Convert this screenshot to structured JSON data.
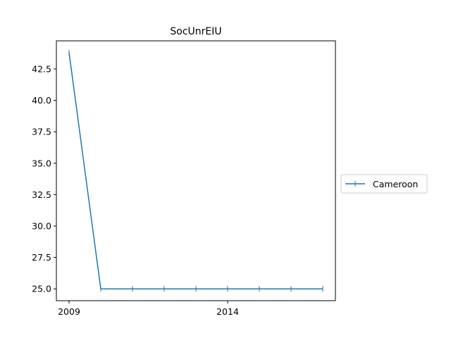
{
  "chart_data": {
    "type": "line",
    "title": "SocUnrEIU",
    "xlabel": "",
    "ylabel": "",
    "x": [
      2009,
      2010,
      2011,
      2012,
      2013,
      2014,
      2015,
      2016,
      2017
    ],
    "series": [
      {
        "name": "Cameroon",
        "values": [
          43.8,
          25.0,
          25.0,
          25.0,
          25.0,
          25.0,
          25.0,
          25.0,
          25.0
        ],
        "color": "#1f77b4"
      }
    ],
    "xticks": [
      2009,
      2014
    ],
    "xtick_labels": [
      "2009",
      "2014"
    ],
    "yticks": [
      25.0,
      27.5,
      30.0,
      32.5,
      35.0,
      37.5,
      40.0,
      42.5
    ],
    "ytick_labels": [
      "25.0",
      "27.5",
      "30.0",
      "32.5",
      "35.0",
      "37.5",
      "40.0",
      "42.5"
    ],
    "xlim": [
      2008.6,
      2017.4
    ],
    "ylim": [
      24.06,
      44.74
    ],
    "grid": false,
    "legend_position": "right"
  }
}
